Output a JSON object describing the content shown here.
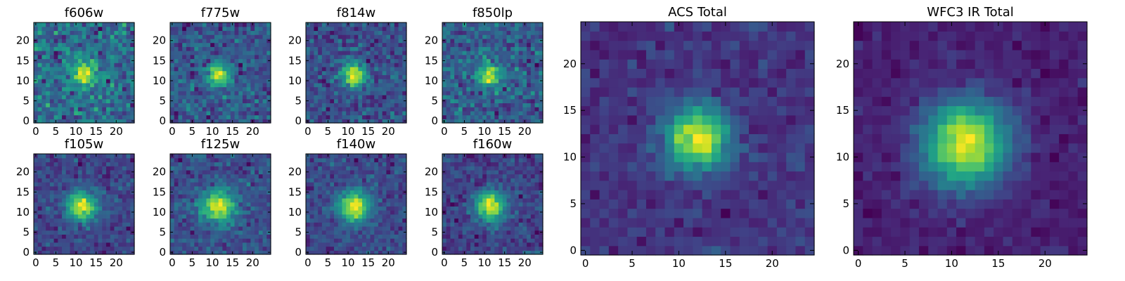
{
  "chart_data": {
    "type": "heatmap",
    "colormap": "viridis",
    "grid_size": [
      25,
      25
    ],
    "axes": {
      "xlim": [
        -0.5,
        24.5
      ],
      "ylim": [
        -0.5,
        24.5
      ],
      "small_x_ticks": [
        0,
        5,
        10,
        15,
        20
      ],
      "small_y_ticks": [
        0,
        5,
        10,
        15,
        20
      ],
      "large_x_ticks": [
        0,
        5,
        10,
        15,
        20
      ],
      "large_y_ticks": [
        0,
        5,
        10,
        15,
        20
      ]
    },
    "panels": [
      {
        "title": "f606w",
        "source_center": [
          12,
          12
        ],
        "source_sigma": 2.2,
        "noise": 0.32,
        "seed": 11
      },
      {
        "title": "f775w",
        "source_center": [
          11.5,
          11.5
        ],
        "source_sigma": 2.0,
        "noise": 0.24,
        "seed": 23
      },
      {
        "title": "f814w",
        "source_center": [
          11.5,
          11.5
        ],
        "source_sigma": 2.1,
        "noise": 0.22,
        "seed": 37
      },
      {
        "title": "f850lp",
        "source_center": [
          11.5,
          11.5
        ],
        "source_sigma": 2.0,
        "noise": 0.28,
        "seed": 41
      },
      {
        "title": "f105w",
        "source_center": [
          11.5,
          11.5
        ],
        "source_sigma": 2.6,
        "noise": 0.16,
        "seed": 53
      },
      {
        "title": "f125w",
        "source_center": [
          11.5,
          11.5
        ],
        "source_sigma": 2.8,
        "noise": 0.17,
        "seed": 67
      },
      {
        "title": "f140w",
        "source_center": [
          11.5,
          11.5
        ],
        "source_sigma": 2.7,
        "noise": 0.15,
        "seed": 71
      },
      {
        "title": "f160w",
        "source_center": [
          11.5,
          11.5
        ],
        "source_sigma": 2.6,
        "noise": 0.16,
        "seed": 83
      },
      {
        "title": "ACS Total",
        "source_center": [
          12,
          12
        ],
        "source_sigma": 2.4,
        "noise": 0.11,
        "seed": 97
      },
      {
        "title": "WFC3 IR Total",
        "source_center": [
          11.5,
          11.5
        ],
        "source_sigma": 3.2,
        "noise": 0.07,
        "seed": 101
      }
    ]
  }
}
